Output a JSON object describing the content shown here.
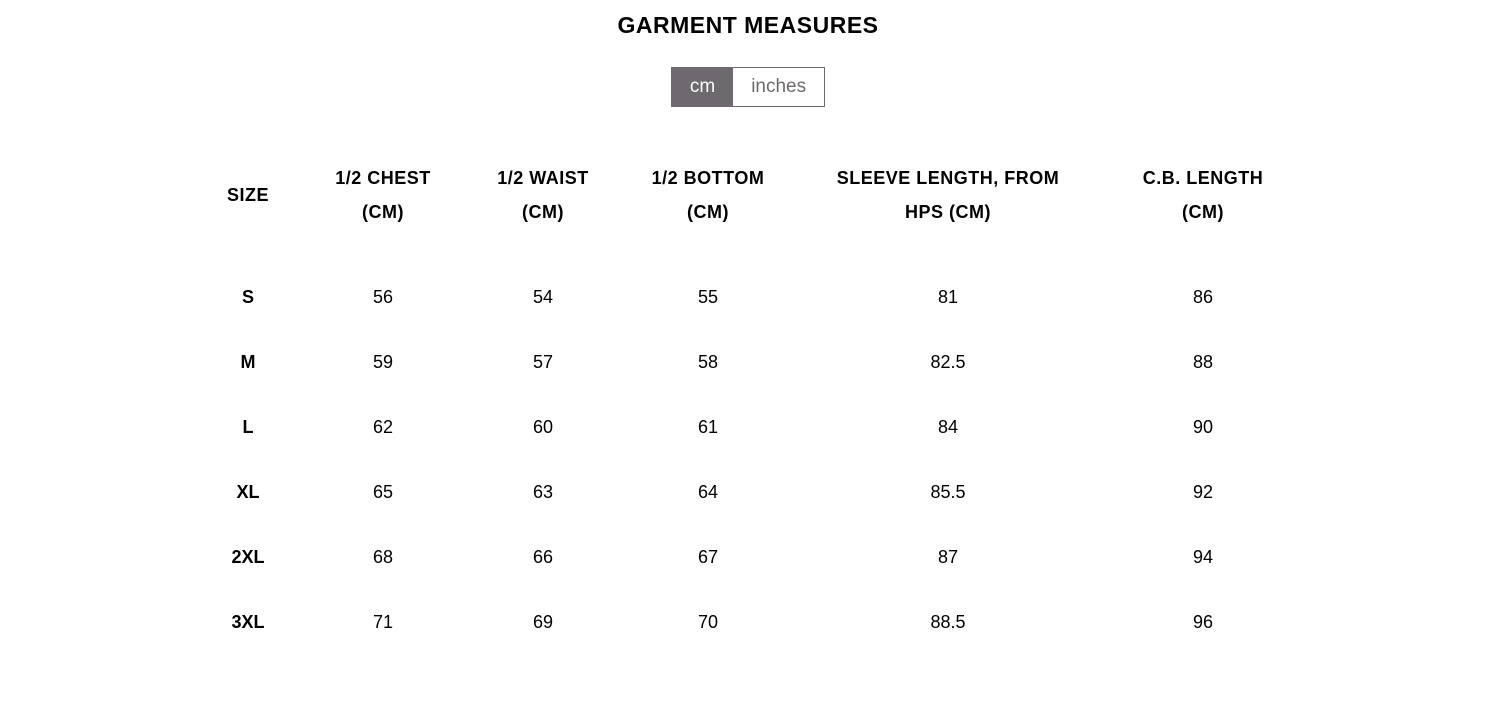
{
  "title": "GARMENT MEASURES",
  "unit_toggle": {
    "cm_label": "cm",
    "inches_label": "inches",
    "active": "cm",
    "active_bg": "#6e696e",
    "active_fg": "#ffffff",
    "inactive_bg": "#ffffff",
    "inactive_fg": "#6e696e",
    "border_color": "#6e696e"
  },
  "table": {
    "columns": [
      {
        "key": "size",
        "label_line1": "SIZE",
        "label_line2": ""
      },
      {
        "key": "chest",
        "label_line1": "1/2 CHEST",
        "label_line2": "(CM)"
      },
      {
        "key": "waist",
        "label_line1": "1/2 WAIST",
        "label_line2": "(CM)"
      },
      {
        "key": "bottom",
        "label_line1": "1/2 BOTTOM",
        "label_line2": "(CM)"
      },
      {
        "key": "sleeve",
        "label_line1": "SLEEVE LENGTH, FROM",
        "label_line2": "HPS (CM)"
      },
      {
        "key": "cb",
        "label_line1": "C.B. LENGTH",
        "label_line2": "(CM)"
      }
    ],
    "rows": [
      {
        "size": "S",
        "chest": "56",
        "waist": "54",
        "bottom": "55",
        "sleeve": "81",
        "cb": "86"
      },
      {
        "size": "M",
        "chest": "59",
        "waist": "57",
        "bottom": "58",
        "sleeve": "82.5",
        "cb": "88"
      },
      {
        "size": "L",
        "chest": "62",
        "waist": "60",
        "bottom": "61",
        "sleeve": "84",
        "cb": "90"
      },
      {
        "size": "XL",
        "chest": "65",
        "waist": "63",
        "bottom": "64",
        "sleeve": "85.5",
        "cb": "92"
      },
      {
        "size": "2XL",
        "chest": "68",
        "waist": "66",
        "bottom": "67",
        "sleeve": "87",
        "cb": "94"
      },
      {
        "size": "3XL",
        "chest": "71",
        "waist": "69",
        "bottom": "70",
        "sleeve": "88.5",
        "cb": "96"
      }
    ]
  },
  "styles": {
    "background_color": "#ffffff",
    "text_color": "#000000",
    "title_fontsize": 23,
    "header_fontsize": 18,
    "cell_fontsize": 18
  }
}
